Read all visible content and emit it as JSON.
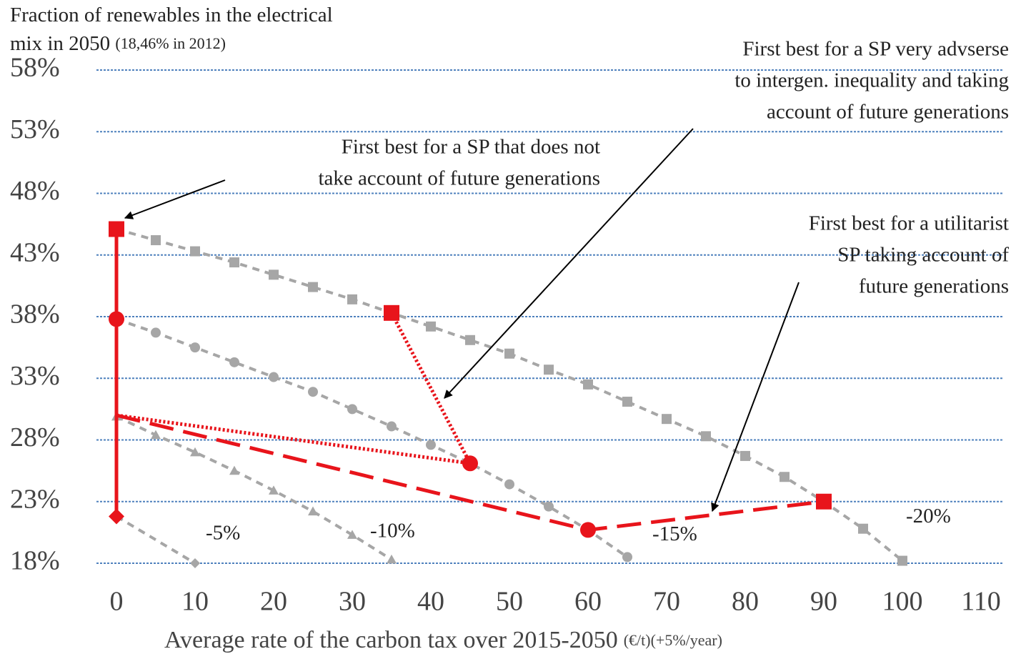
{
  "chart_data": {
    "type": "line",
    "y_title": "Fraction of renewables in the electrical mix in 2050",
    "y_title_note": "(18,46% in 2012)",
    "x_title": "Average rate of the carbon tax over 2015-2050",
    "x_title_note": "(€/t)(+5%/year)",
    "xlim": [
      0,
      110
    ],
    "xticks": [
      0,
      10,
      20,
      30,
      40,
      50,
      60,
      70,
      80,
      90,
      100,
      110
    ],
    "ylim": [
      18,
      58
    ],
    "yticks": [
      {
        "value": 18,
        "label": "18%"
      },
      {
        "value": 23,
        "label": "23%"
      },
      {
        "value": 28,
        "label": "28%"
      },
      {
        "value": 33,
        "label": "33%"
      },
      {
        "value": 38,
        "label": "38%"
      },
      {
        "value": 43,
        "label": "43%"
      },
      {
        "value": 48,
        "label": "48%"
      },
      {
        "value": 53,
        "label": "53%"
      },
      {
        "value": 58,
        "label": "58%"
      }
    ],
    "grid": true,
    "series": [
      {
        "label": "-5%",
        "color": "#a6a6a6",
        "dash": "dashed",
        "marker": "diamond",
        "x": [
          0,
          10
        ],
        "values": [
          21.8,
          18
        ]
      },
      {
        "label": "-10%",
        "color": "#a6a6a6",
        "dash": "dashed",
        "marker": "triangle",
        "x": [
          0,
          5,
          10,
          15,
          20,
          25,
          30,
          35
        ],
        "values": [
          29.9,
          28.4,
          27.0,
          25.5,
          23.9,
          22.2,
          20.3,
          18.3
        ]
      },
      {
        "label": "-15%",
        "color": "#a6a6a6",
        "dash": "dashed",
        "marker": "circle",
        "x": [
          0,
          5,
          10,
          15,
          20,
          25,
          30,
          35,
          40,
          45,
          50,
          55,
          60,
          65
        ],
        "values": [
          37.8,
          36.7,
          35.5,
          34.3,
          33.1,
          31.9,
          30.5,
          29.1,
          27.6,
          26.1,
          24.4,
          22.6,
          20.7,
          18.5
        ]
      },
      {
        "label": "-20%",
        "color": "#a6a6a6",
        "dash": "dashed",
        "marker": "square",
        "x": [
          0,
          5,
          10,
          15,
          20,
          25,
          30,
          35,
          40,
          45,
          50,
          55,
          60,
          65,
          70,
          75,
          80,
          85,
          90,
          95,
          100
        ],
        "values": [
          45.1,
          44.2,
          43.3,
          42.4,
          41.4,
          40.4,
          39.4,
          38.3,
          37.2,
          36.1,
          35.0,
          33.7,
          32.5,
          31.1,
          29.7,
          28.3,
          26.7,
          25.0,
          23.0,
          20.8,
          18.2
        ]
      },
      {
        "color": "#e8141b",
        "dash": "solid",
        "marker": [
          "square",
          "circle",
          "none",
          "diamond"
        ],
        "x": [
          0,
          0,
          0,
          0
        ],
        "values": [
          45.1,
          37.8,
          30,
          21.8
        ]
      },
      {
        "color": "#e8141b",
        "dash": "dotted",
        "marker": [
          "none",
          "circle",
          "square"
        ],
        "x": [
          0,
          45,
          35
        ],
        "values": [
          30,
          26.1,
          38.3
        ]
      },
      {
        "color": "#e8141b",
        "dash": "longdash",
        "marker": [
          "none",
          "circle",
          "square"
        ],
        "x": [
          0,
          60,
          90
        ],
        "values": [
          30,
          20.7,
          23.0
        ]
      }
    ],
    "annotations": [
      {
        "lines": [
          "First best for a SP that does not",
          "take account of future generations"
        ]
      },
      {
        "lines": [
          "First best for a SP very advserse",
          "to intergen. inequality and taking",
          "account of future generations"
        ]
      },
      {
        "lines": [
          "First best for a utilitarist",
          "SP taking account of",
          "future generations"
        ]
      }
    ]
  }
}
